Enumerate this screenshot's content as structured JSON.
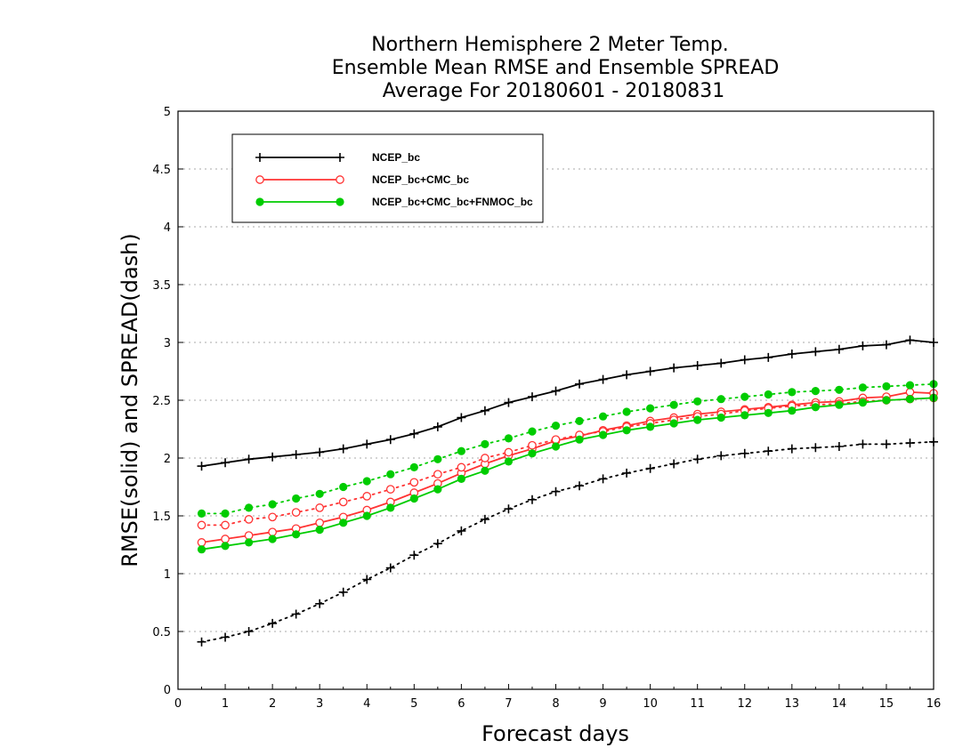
{
  "chart_data": {
    "type": "line",
    "title_lines": [
      "Northern Hemisphere 2 Meter Temp.",
      "Ensemble Mean RMSE and Ensemble SPREAD",
      "Average For 20180601 - 20180831"
    ],
    "xlabel": "Forecast days",
    "ylabel": "RMSE(solid) and SPREAD(dash)",
    "xlim": [
      0,
      16
    ],
    "ylim": [
      0,
      5
    ],
    "x_ticks": [
      "0",
      "1",
      "2",
      "3",
      "4",
      "5",
      "6",
      "7",
      "8",
      "9",
      "10",
      "11",
      "12",
      "13",
      "14",
      "15",
      "16"
    ],
    "y_ticks": [
      "0",
      "0.5",
      "1",
      "1.5",
      "2",
      "2.5",
      "3",
      "3.5",
      "4",
      "4.5",
      "5"
    ],
    "grid": "horizontal-dotted",
    "legend_position": "top-left",
    "x": [
      0.5,
      1,
      1.5,
      2,
      2.5,
      3,
      3.5,
      4,
      4.5,
      5,
      5.5,
      6,
      6.5,
      7,
      7.5,
      8,
      8.5,
      9,
      9.5,
      10,
      10.5,
      11,
      11.5,
      12,
      12.5,
      13,
      13.5,
      14,
      14.5,
      15,
      15.5,
      16
    ],
    "series": [
      {
        "name": "NCEP_bc",
        "color": "#000000",
        "marker": "plus",
        "rmse": [
          1.93,
          1.96,
          1.99,
          2.01,
          2.03,
          2.05,
          2.08,
          2.12,
          2.16,
          2.21,
          2.27,
          2.35,
          2.41,
          2.48,
          2.53,
          2.58,
          2.64,
          2.68,
          2.72,
          2.75,
          2.78,
          2.8,
          2.82,
          2.85,
          2.87,
          2.9,
          2.92,
          2.94,
          2.97,
          2.98,
          3.02,
          3.0
        ],
        "spread": [
          0.41,
          0.45,
          0.5,
          0.57,
          0.65,
          0.74,
          0.84,
          0.95,
          1.05,
          1.16,
          1.26,
          1.37,
          1.47,
          1.56,
          1.64,
          1.71,
          1.76,
          1.82,
          1.87,
          1.91,
          1.95,
          1.99,
          2.02,
          2.04,
          2.06,
          2.08,
          2.09,
          2.1,
          2.12,
          2.12,
          2.13,
          2.14
        ]
      },
      {
        "name": "NCEP_bc+CMC_bc",
        "color": "#ff3333",
        "marker": "open-circle",
        "rmse": [
          1.27,
          1.3,
          1.33,
          1.36,
          1.39,
          1.44,
          1.49,
          1.55,
          1.62,
          1.7,
          1.78,
          1.87,
          1.95,
          2.02,
          2.08,
          2.15,
          2.19,
          2.24,
          2.28,
          2.32,
          2.35,
          2.38,
          2.4,
          2.42,
          2.44,
          2.46,
          2.48,
          2.49,
          2.52,
          2.53,
          2.57,
          2.56
        ],
        "spread": [
          1.42,
          1.42,
          1.47,
          1.49,
          1.53,
          1.57,
          1.62,
          1.67,
          1.73,
          1.79,
          1.86,
          1.92,
          2.0,
          2.05,
          2.11,
          2.16,
          2.2,
          2.23,
          2.27,
          2.3,
          2.33,
          2.36,
          2.38,
          2.41,
          2.43,
          2.45,
          2.46,
          2.47,
          2.49,
          2.5,
          2.51,
          2.52
        ]
      },
      {
        "name": "NCEP_bc+CMC_bc+FNMOC_bc",
        "color": "#00cc00",
        "marker": "filled-circle",
        "rmse": [
          1.21,
          1.24,
          1.27,
          1.3,
          1.34,
          1.38,
          1.44,
          1.5,
          1.57,
          1.65,
          1.73,
          1.82,
          1.89,
          1.97,
          2.04,
          2.1,
          2.16,
          2.2,
          2.24,
          2.27,
          2.3,
          2.33,
          2.35,
          2.37,
          2.39,
          2.41,
          2.44,
          2.46,
          2.48,
          2.5,
          2.51,
          2.52
        ],
        "spread": [
          1.52,
          1.52,
          1.57,
          1.6,
          1.65,
          1.69,
          1.75,
          1.8,
          1.86,
          1.92,
          1.99,
          2.06,
          2.12,
          2.17,
          2.23,
          2.28,
          2.32,
          2.36,
          2.4,
          2.43,
          2.46,
          2.49,
          2.51,
          2.53,
          2.55,
          2.57,
          2.58,
          2.59,
          2.61,
          2.62,
          2.63,
          2.64
        ]
      }
    ]
  }
}
